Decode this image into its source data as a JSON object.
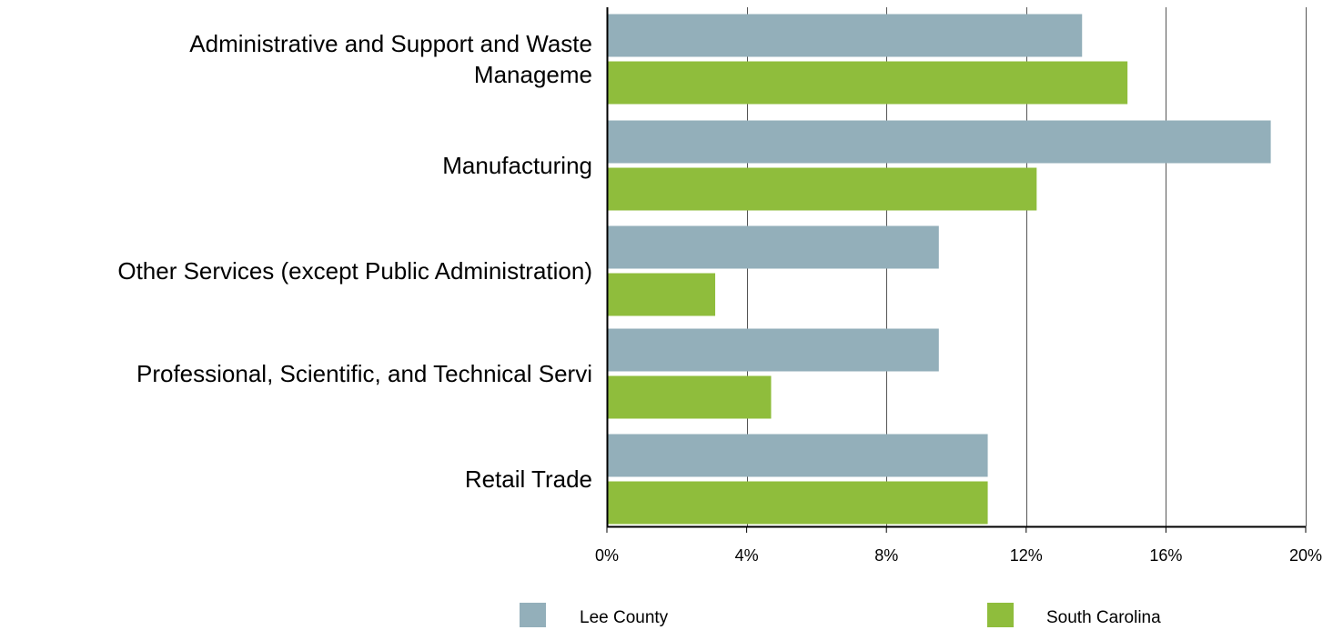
{
  "chart_data": {
    "type": "bar",
    "orientation": "horizontal",
    "categories": [
      [
        "Administrative and Support and Waste",
        "Manageme"
      ],
      [
        "Manufacturing"
      ],
      [
        "Other Services (except Public Administration)"
      ],
      [
        "Professional, Scientific, and Technical Servi"
      ],
      [
        "Retail Trade"
      ]
    ],
    "series": [
      {
        "name": "Lee County",
        "color": "#93afba",
        "values": [
          13.6,
          19.0,
          9.5,
          9.5,
          10.9
        ]
      },
      {
        "name": "South Carolina",
        "color": "#8fbd3c",
        "values": [
          14.9,
          12.3,
          3.1,
          4.7,
          10.9
        ]
      }
    ],
    "x_ticks": [
      "0%",
      "4%",
      "8%",
      "12%",
      "16%",
      "20%"
    ],
    "xlim": [
      0,
      20
    ],
    "grid": "vertical",
    "legend_position": "bottom"
  }
}
